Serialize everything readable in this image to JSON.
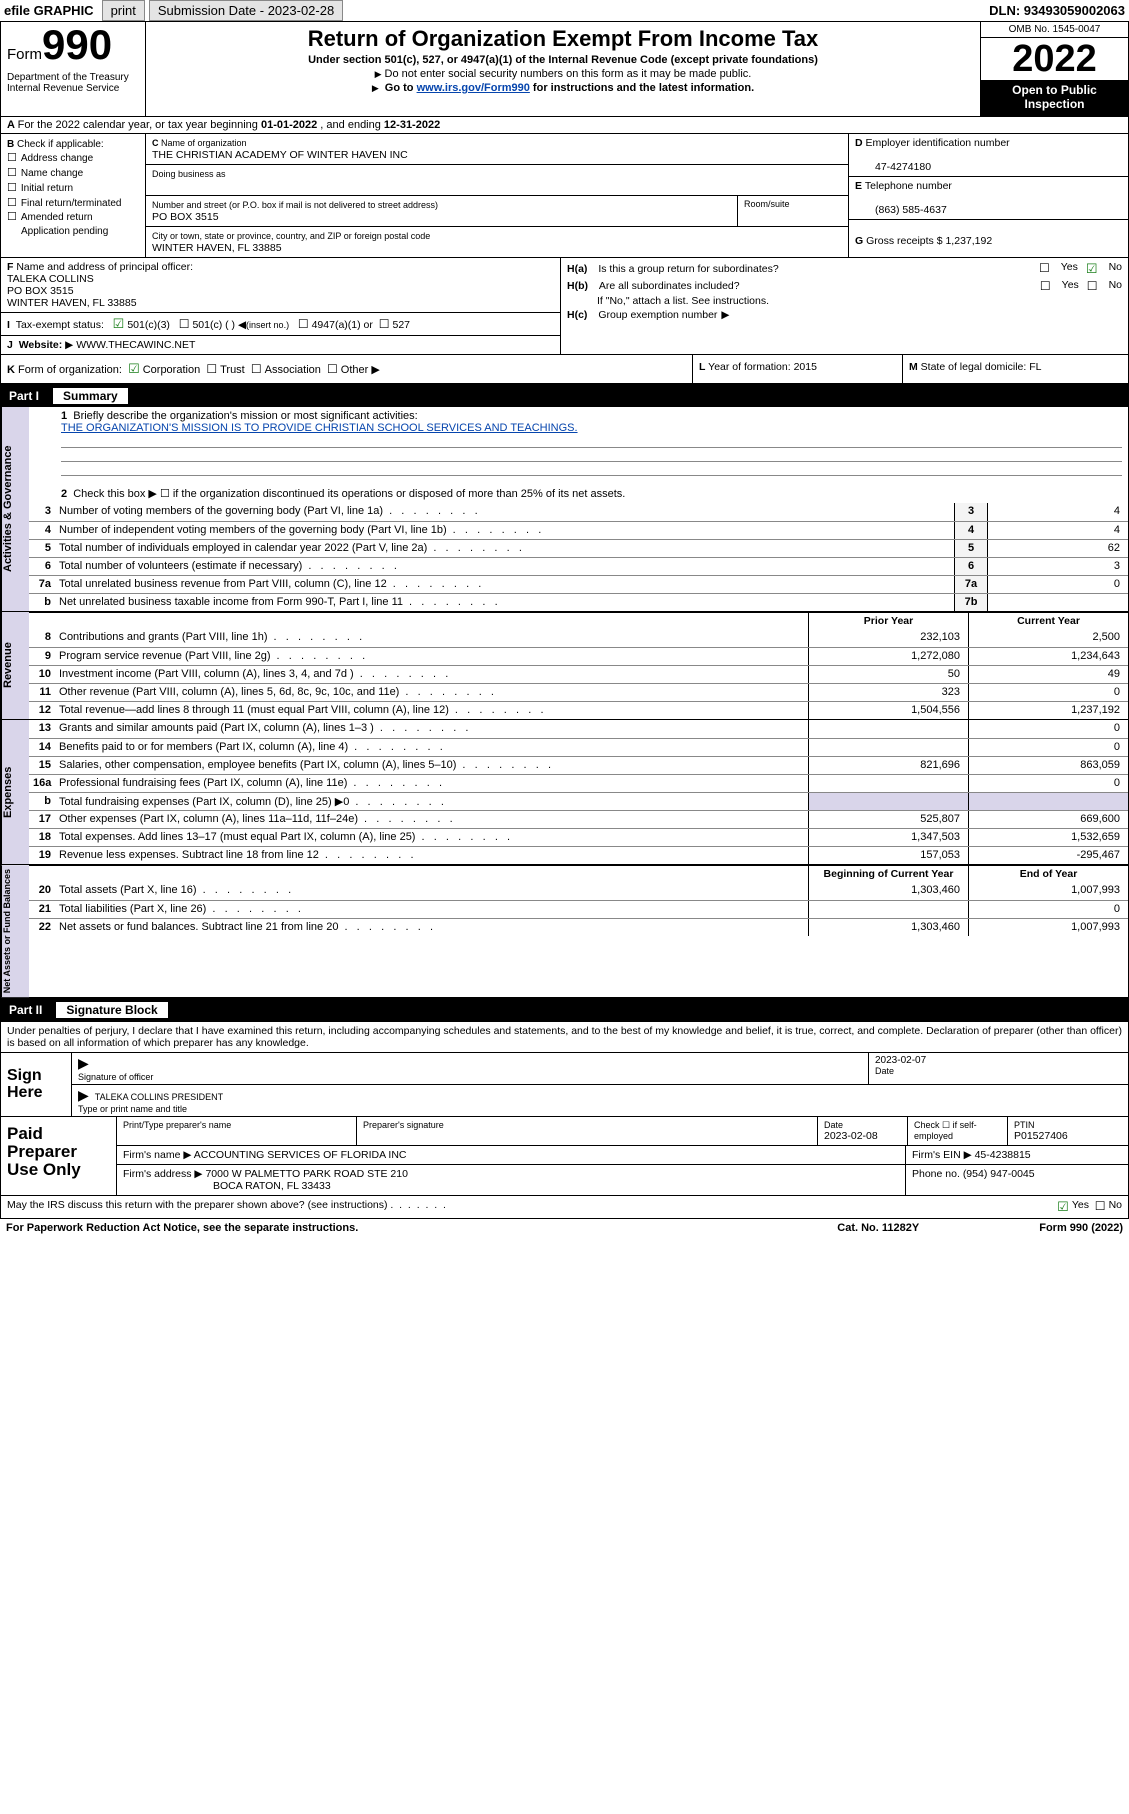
{
  "topbar": {
    "efile": "efile GRAPHIC",
    "print": "print",
    "subdate_label": "Submission Date - 2023-02-28",
    "dln": "DLN: 93493059002063"
  },
  "header": {
    "form_label": "Form",
    "form_num": "990",
    "dept": "Department of the Treasury\nInternal Revenue Service",
    "title": "Return of Organization Exempt From Income Tax",
    "sub1": "Under section 501(c), 527, or 4947(a)(1) of the Internal Revenue Code (except private foundations)",
    "sub2": "Do not enter social security numbers on this form as it may be made public.",
    "sub3_pre": "Go to ",
    "sub3_link": "www.irs.gov/Form990",
    "sub3_post": " for instructions and the latest information.",
    "omb": "OMB No. 1545-0047",
    "year": "2022",
    "inspect": "Open to Public Inspection"
  },
  "lineA": {
    "text_pre": "For the 2022 calendar year, or tax year beginning ",
    "begin": "01-01-2022",
    "mid": " , and ending ",
    "end": "12-31-2022"
  },
  "B": {
    "label": "Check if applicable:",
    "items": [
      "Address change",
      "Name change",
      "Initial return",
      "Final return/terminated",
      "Amended return",
      "Application pending"
    ]
  },
  "C": {
    "name_label": "Name of organization",
    "name": "THE CHRISTIAN ACADEMY OF WINTER HAVEN INC",
    "dba_label": "Doing business as",
    "dba": "",
    "street_label": "Number and street (or P.O. box if mail is not delivered to street address)",
    "room_label": "Room/suite",
    "street": "PO BOX 3515",
    "city_label": "City or town, state or province, country, and ZIP or foreign postal code",
    "city": "WINTER HAVEN, FL  33885"
  },
  "D": {
    "ein_label": "Employer identification number",
    "ein": "47-4274180"
  },
  "E": {
    "label": "Telephone number",
    "val": "(863) 585-4637"
  },
  "G": {
    "label": "Gross receipts $",
    "val": "1,237,192"
  },
  "F": {
    "label": "Name and address of principal officer:",
    "name": "TALEKA COLLINS",
    "addr1": "PO BOX 3515",
    "addr2": "WINTER HAVEN, FL  33885"
  },
  "I": {
    "label": "Tax-exempt status:",
    "o1": "501(c)(3)",
    "o2": "501(c) (  )",
    "o2b": "(insert no.)",
    "o3": "4947(a)(1) or",
    "o4": "527"
  },
  "J": {
    "label": "Website:",
    "val": "WWW.THECAWINC.NET"
  },
  "H": {
    "a": "Is this a group return for subordinates?",
    "b": "Are all subordinates included?",
    "b2": "If \"No,\" attach a list. See instructions.",
    "c": "Group exemption number",
    "yes": "Yes",
    "no": "No"
  },
  "K": {
    "label": "Form of organization:",
    "o1": "Corporation",
    "o2": "Trust",
    "o3": "Association",
    "o4": "Other"
  },
  "L": {
    "label": "Year of formation:",
    "val": "2015"
  },
  "M": {
    "label": "State of legal domicile:",
    "val": "FL"
  },
  "part1": {
    "pt": "Part I",
    "nm": "Summary"
  },
  "summary": {
    "q1": "Briefly describe the organization's mission or most significant activities:",
    "a1": "THE ORGANIZATION'S MISSION IS TO PROVIDE CHRISTIAN SCHOOL SERVICES AND TEACHINGS.",
    "q2": "Check this box ▶ ☐  if the organization discontinued its operations or disposed of more than 25% of its net assets.",
    "rows_gov": [
      {
        "n": "3",
        "t": "Number of voting members of the governing body (Part VI, line 1a)",
        "ln": "3",
        "v": "4"
      },
      {
        "n": "4",
        "t": "Number of independent voting members of the governing body (Part VI, line 1b)",
        "ln": "4",
        "v": "4"
      },
      {
        "n": "5",
        "t": "Total number of individuals employed in calendar year 2022 (Part V, line 2a)",
        "ln": "5",
        "v": "62"
      },
      {
        "n": "6",
        "t": "Total number of volunteers (estimate if necessary)",
        "ln": "6",
        "v": "3"
      },
      {
        "n": "7a",
        "t": "Total unrelated business revenue from Part VIII, column (C), line 12",
        "ln": "7a",
        "v": "0"
      },
      {
        "n": "b",
        "t": "Net unrelated business taxable income from Form 990-T, Part I, line 11",
        "ln": "7b",
        "v": ""
      }
    ],
    "col_heads": {
      "c1": "Prior Year",
      "c2": "Current Year"
    },
    "revenue": [
      {
        "n": "8",
        "t": "Contributions and grants (Part VIII, line 1h)",
        "c1": "232,103",
        "c2": "2,500"
      },
      {
        "n": "9",
        "t": "Program service revenue (Part VIII, line 2g)",
        "c1": "1,272,080",
        "c2": "1,234,643"
      },
      {
        "n": "10",
        "t": "Investment income (Part VIII, column (A), lines 3, 4, and 7d )",
        "c1": "50",
        "c2": "49"
      },
      {
        "n": "11",
        "t": "Other revenue (Part VIII, column (A), lines 5, 6d, 8c, 9c, 10c, and 11e)",
        "c1": "323",
        "c2": "0"
      },
      {
        "n": "12",
        "t": "Total revenue—add lines 8 through 11 (must equal Part VIII, column (A), line 12)",
        "c1": "1,504,556",
        "c2": "1,237,192"
      }
    ],
    "expenses": [
      {
        "n": "13",
        "t": "Grants and similar amounts paid (Part IX, column (A), lines 1–3 )",
        "c1": "",
        "c2": "0"
      },
      {
        "n": "14",
        "t": "Benefits paid to or for members (Part IX, column (A), line 4)",
        "c1": "",
        "c2": "0"
      },
      {
        "n": "15",
        "t": "Salaries, other compensation, employee benefits (Part IX, column (A), lines 5–10)",
        "c1": "821,696",
        "c2": "863,059"
      },
      {
        "n": "16a",
        "t": "Professional fundraising fees (Part IX, column (A), line 11e)",
        "c1": "",
        "c2": "0"
      },
      {
        "n": "b",
        "t": "Total fundraising expenses (Part IX, column (D), line 25) ▶0",
        "c1": "__grey__",
        "c2": "__grey__"
      },
      {
        "n": "17",
        "t": "Other expenses (Part IX, column (A), lines 11a–11d, 11f–24e)",
        "c1": "525,807",
        "c2": "669,600"
      },
      {
        "n": "18",
        "t": "Total expenses. Add lines 13–17 (must equal Part IX, column (A), line 25)",
        "c1": "1,347,503",
        "c2": "1,532,659"
      },
      {
        "n": "19",
        "t": "Revenue less expenses. Subtract line 18 from line 12",
        "c1": "157,053",
        "c2": "-295,467"
      }
    ],
    "na_heads": {
      "c1": "Beginning of Current Year",
      "c2": "End of Year"
    },
    "netassets": [
      {
        "n": "20",
        "t": "Total assets (Part X, line 16)",
        "c1": "1,303,460",
        "c2": "1,007,993"
      },
      {
        "n": "21",
        "t": "Total liabilities (Part X, line 26)",
        "c1": "",
        "c2": "0"
      },
      {
        "n": "22",
        "t": "Net assets or fund balances. Subtract line 21 from line 20",
        "c1": "1,303,460",
        "c2": "1,007,993"
      }
    ]
  },
  "part2": {
    "pt": "Part II",
    "nm": "Signature Block"
  },
  "sig": {
    "decl": "Under penalties of perjury, I declare that I have examined this return, including accompanying schedules and statements, and to the best of my knowledge and belief, it is true, correct, and complete. Declaration of preparer (other than officer) is based on all information of which preparer has any knowledge.",
    "here": "Sign Here",
    "sig_label": "Signature of officer",
    "date": "2023-02-07",
    "date_label": "Date",
    "name": "TALEKA COLLINS  PRESIDENT",
    "name_label": "Type or print name and title"
  },
  "prep": {
    "label": "Paid Preparer Use Only",
    "h1": "Print/Type preparer's name",
    "h2": "Preparer's signature",
    "h3": "Date",
    "h3v": "2023-02-08",
    "h4": "Check ☐ if self-employed",
    "h5": "PTIN",
    "h5v": "P01527406",
    "firm_label": "Firm's name   ▶",
    "firm": "ACCOUNTING SERVICES OF FLORIDA INC",
    "ein_label": "Firm's EIN ▶",
    "ein": "45-4238815",
    "addr_label": "Firm's address ▶",
    "addr1": "7000 W PALMETTO PARK ROAD STE 210",
    "addr2": "BOCA RATON, FL  33433",
    "ph_label": "Phone no.",
    "ph": "(954) 947-0045"
  },
  "foot": {
    "q": "May the IRS discuss this return with the preparer shown above? (see instructions)",
    "yes": "Yes",
    "no": "No",
    "pra": "For Paperwork Reduction Act Notice, see the separate instructions.",
    "cat": "Cat. No. 11282Y",
    "form": "Form 990 (2022)"
  },
  "sidetabs": {
    "gov": "Activities & Governance",
    "rev": "Revenue",
    "exp": "Expenses",
    "na": "Net Assets or Fund Balances"
  }
}
